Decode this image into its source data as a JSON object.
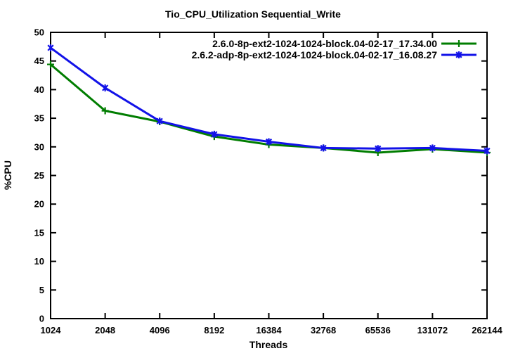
{
  "chart_data": {
    "type": "line",
    "title": "Tio_CPU_Utilization Sequential_Write",
    "xlabel": "Threads",
    "ylabel": "%CPU",
    "x_scale": "log2",
    "grid": "off",
    "legend_position": "top-right-inside",
    "background_color": "#ffffff",
    "axis_color": "#000000",
    "categories": [
      "1024",
      "2048",
      "4096",
      "8192",
      "16384",
      "32768",
      "65536",
      "131072",
      "262144"
    ],
    "ylim": [
      0,
      50
    ],
    "ytick_step": 5,
    "series": [
      {
        "name": "2.6.0-8p-ext2-1024-1024-block.04-02-17_17.34.00",
        "color": "#007d00",
        "marker": "plus",
        "values": [
          44.4,
          36.3,
          34.4,
          31.8,
          30.4,
          29.8,
          29.0,
          29.6,
          29.0
        ]
      },
      {
        "name": "2.6.2-adp-8p-ext2-1024-1024-block.04-02-17_16.08.27",
        "color": "#1212e8",
        "marker": "star",
        "values": [
          47.3,
          40.3,
          34.5,
          32.2,
          30.9,
          29.8,
          29.7,
          29.8,
          29.3
        ]
      }
    ]
  }
}
